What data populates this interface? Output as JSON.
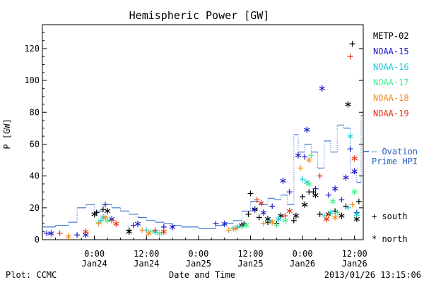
{
  "chart_data": {
    "type": "scatter",
    "title": "Hemispheric Power [GW]",
    "ylabel": "P [GW]",
    "xlabel": "Date and Time",
    "xlim": [
      "2013-01-23 12:00",
      "2013-01-26 14:00"
    ],
    "ylim": [
      0,
      135
    ],
    "y_ticks": [
      0,
      20,
      40,
      60,
      80,
      100,
      120
    ],
    "x_ticks": [
      {
        "t": "2013-01-24 00:00",
        "time": "0:00",
        "day": "Jan24"
      },
      {
        "t": "2013-01-24 12:00",
        "time": "12:00",
        "day": "Jan24"
      },
      {
        "t": "2013-01-25 00:00",
        "time": "0:00",
        "day": "Jan25"
      },
      {
        "t": "2013-01-25 12:00",
        "time": "12:00",
        "day": "Jan25"
      },
      {
        "t": "2013-01-26 00:00",
        "time": "0:00",
        "day": "Jan26"
      },
      {
        "t": "2013-01-26 12:00",
        "time": "12:00",
        "day": "Jan26"
      }
    ],
    "marker_legend": [
      {
        "symbol": "+",
        "label": "south"
      },
      {
        "symbol": "*",
        "label": "north"
      }
    ],
    "ovation": {
      "label_line1": "— Ovation",
      "label_line2": "Prime HPI",
      "color": "#1f5fc8",
      "points": [
        [
          "2013-01-23 12:00",
          8
        ],
        [
          "2013-01-23 15:00",
          9
        ],
        [
          "2013-01-23 18:00",
          11
        ],
        [
          "2013-01-23 20:00",
          20
        ],
        [
          "2013-01-23 22:00",
          22
        ],
        [
          "2013-01-24 00:00",
          18
        ],
        [
          "2013-01-24 02:00",
          22
        ],
        [
          "2013-01-24 04:00",
          20
        ],
        [
          "2013-01-24 06:00",
          18
        ],
        [
          "2013-01-24 08:00",
          16
        ],
        [
          "2013-01-24 10:00",
          14
        ],
        [
          "2013-01-24 12:00",
          12
        ],
        [
          "2013-01-24 14:00",
          11
        ],
        [
          "2013-01-24 16:00",
          10
        ],
        [
          "2013-01-24 18:00",
          9
        ],
        [
          "2013-01-24 20:00",
          8
        ],
        [
          "2013-01-24 22:00",
          8
        ],
        [
          "2013-01-25 00:00",
          7
        ],
        [
          "2013-01-25 02:00",
          7
        ],
        [
          "2013-01-25 04:00",
          9
        ],
        [
          "2013-01-25 06:00",
          10
        ],
        [
          "2013-01-25 08:00",
          12
        ],
        [
          "2013-01-25 10:00",
          18
        ],
        [
          "2013-01-25 12:00",
          24
        ],
        [
          "2013-01-25 14:00",
          22
        ],
        [
          "2013-01-25 16:00",
          26
        ],
        [
          "2013-01-25 17:30",
          25
        ],
        [
          "2013-01-25 19:00",
          28
        ],
        [
          "2013-01-25 20:30",
          22
        ],
        [
          "2013-01-25 22:00",
          66
        ],
        [
          "2013-01-25 23:00",
          55
        ],
        [
          "2013-01-26 00:30",
          60
        ],
        [
          "2013-01-26 02:00",
          55
        ],
        [
          "2013-01-26 03:30",
          45
        ],
        [
          "2013-01-26 05:00",
          62
        ],
        [
          "2013-01-26 06:30",
          55
        ],
        [
          "2013-01-26 08:00",
          72
        ],
        [
          "2013-01-26 09:30",
          70
        ],
        [
          "2013-01-26 11:00",
          42
        ],
        [
          "2013-01-26 12:30",
          36
        ],
        [
          "2013-01-26 13:30",
          78
        ]
      ]
    },
    "series": [
      {
        "name": "METP-02",
        "color": "#000000",
        "south": [
          [
            "2013-01-24 00:30",
            17
          ],
          [
            "2013-01-24 02:00",
            19
          ],
          [
            "2013-01-24 08:00",
            6
          ],
          [
            "2013-01-25 10:30",
            10
          ],
          [
            "2013-01-25 11:30",
            16
          ],
          [
            "2013-01-25 12:00",
            29
          ],
          [
            "2013-01-25 14:00",
            14
          ],
          [
            "2013-01-25 16:00",
            11
          ],
          [
            "2013-01-25 18:00",
            10
          ],
          [
            "2013-01-25 22:00",
            12
          ],
          [
            "2013-01-26 00:00",
            27
          ],
          [
            "2013-01-26 01:30",
            30
          ],
          [
            "2013-01-26 02:30",
            30
          ],
          [
            "2013-01-26 04:00",
            16
          ],
          [
            "2013-01-26 07:30",
            18
          ],
          [
            "2013-01-26 10:00",
            21
          ],
          [
            "2013-01-26 11:30",
            123
          ],
          [
            "2013-01-26 13:00",
            24
          ]
        ],
        "north": [
          [
            "2013-01-24 00:00",
            16
          ],
          [
            "2013-01-24 03:00",
            18
          ],
          [
            "2013-01-24 08:00",
            5
          ],
          [
            "2013-01-25 10:00",
            9
          ],
          [
            "2013-01-25 13:00",
            19
          ],
          [
            "2013-01-25 16:00",
            13
          ],
          [
            "2013-01-25 19:00",
            15
          ],
          [
            "2013-01-25 22:30",
            15
          ],
          [
            "2013-01-26 00:30",
            22
          ],
          [
            "2013-01-26 03:00",
            28
          ],
          [
            "2013-01-26 06:00",
            16
          ],
          [
            "2013-01-26 09:00",
            15
          ],
          [
            "2013-01-26 10:30",
            85
          ],
          [
            "2013-01-26 12:30",
            13
          ]
        ]
      },
      {
        "name": "NOAA-15",
        "color": "#1a1acc",
        "south": [
          [
            "2013-01-23 13:00",
            4
          ],
          [
            "2013-01-23 20:00",
            3
          ],
          [
            "2013-01-24 02:30",
            22
          ],
          [
            "2013-01-24 09:00",
            9
          ],
          [
            "2013-01-24 16:00",
            8
          ],
          [
            "2013-01-25 04:00",
            10
          ],
          [
            "2013-01-25 13:00",
            19
          ],
          [
            "2013-01-25 17:00",
            21
          ],
          [
            "2013-01-25 21:00",
            30
          ],
          [
            "2013-01-26 00:30",
            52
          ],
          [
            "2013-01-26 03:00",
            32
          ],
          [
            "2013-01-26 06:00",
            28
          ],
          [
            "2013-01-26 09:00",
            25
          ],
          [
            "2013-01-26 11:00",
            57
          ],
          [
            "2013-01-26 12:30",
            17
          ]
        ],
        "north": [
          [
            "2013-01-23 14:00",
            4
          ],
          [
            "2013-01-23 22:00",
            3
          ],
          [
            "2013-01-24 04:00",
            13
          ],
          [
            "2013-01-24 10:00",
            10
          ],
          [
            "2013-01-24 18:00",
            8
          ],
          [
            "2013-01-25 06:00",
            10
          ],
          [
            "2013-01-25 15:00",
            17
          ],
          [
            "2013-01-25 19:30",
            37
          ],
          [
            "2013-01-25 23:00",
            53
          ],
          [
            "2013-01-26 01:00",
            69
          ],
          [
            "2013-01-26 04:30",
            95
          ],
          [
            "2013-01-26 07:30",
            32
          ],
          [
            "2013-01-26 10:00",
            39
          ],
          [
            "2013-01-26 12:00",
            43
          ]
        ]
      },
      {
        "name": "NOAA-16",
        "color": "#19c8d6",
        "south": [
          [
            "2013-01-24 01:30",
            12
          ],
          [
            "2013-01-24 12:00",
            6
          ],
          [
            "2013-01-25 08:00",
            7
          ],
          [
            "2013-01-25 16:30",
            12
          ],
          [
            "2013-01-26 00:00",
            38
          ],
          [
            "2013-01-26 05:00",
            15
          ],
          [
            "2013-01-26 10:30",
            20
          ]
        ],
        "north": [
          [
            "2013-01-24 02:00",
            14
          ],
          [
            "2013-01-24 14:00",
            5
          ],
          [
            "2013-01-25 09:00",
            8
          ],
          [
            "2013-01-25 18:30",
            13
          ],
          [
            "2013-01-26 01:00",
            36
          ],
          [
            "2013-01-26 06:30",
            17
          ],
          [
            "2013-01-26 11:00",
            65
          ],
          [
            "2013-01-26 12:30",
            16
          ]
        ]
      },
      {
        "name": "NOAA-17",
        "color": "#3ef08a",
        "south": [
          [
            "2013-01-24 01:00",
            11
          ],
          [
            "2013-01-24 13:00",
            5
          ],
          [
            "2013-01-25 10:00",
            8
          ],
          [
            "2013-01-25 18:00",
            9
          ],
          [
            "2013-01-26 02:00",
            53
          ],
          [
            "2013-01-26 08:00",
            17
          ]
        ],
        "north": [
          [
            "2013-01-24 03:00",
            12
          ],
          [
            "2013-01-24 15:00",
            4
          ],
          [
            "2013-01-25 11:00",
            9
          ],
          [
            "2013-01-25 20:00",
            12
          ],
          [
            "2013-01-26 01:30",
            35
          ],
          [
            "2013-01-26 07:00",
            24
          ],
          [
            "2013-01-26 12:00",
            30
          ]
        ]
      },
      {
        "name": "NOAA-18",
        "color": "#f08a1a",
        "south": [
          [
            "2013-01-24 01:00",
            10
          ],
          [
            "2013-01-24 11:00",
            6
          ],
          [
            "2013-01-25 07:00",
            6
          ],
          [
            "2013-01-25 15:00",
            10
          ],
          [
            "2013-01-25 23:30",
            45
          ],
          [
            "2013-01-26 06:00",
            15
          ],
          [
            "2013-01-26 11:30",
            22
          ]
        ],
        "north": [
          [
            "2013-01-23 18:00",
            2
          ],
          [
            "2013-01-24 02:30",
            14
          ],
          [
            "2013-01-24 12:30",
            4
          ],
          [
            "2013-01-25 08:30",
            7
          ],
          [
            "2013-01-25 17:00",
            11
          ],
          [
            "2013-01-26 01:30",
            50
          ],
          [
            "2013-01-26 07:30",
            14
          ]
        ]
      },
      {
        "name": "NOAA-19",
        "color": "#e83010",
        "south": [
          [
            "2013-01-23 16:00",
            4
          ],
          [
            "2013-01-24 04:00",
            12
          ],
          [
            "2013-01-24 14:00",
            6
          ],
          [
            "2013-01-25 13:30",
            25
          ],
          [
            "2013-01-25 20:00",
            15
          ],
          [
            "2013-01-26 04:00",
            40
          ],
          [
            "2013-01-26 11:00",
            115
          ]
        ],
        "north": [
          [
            "2013-01-23 22:00",
            5
          ],
          [
            "2013-01-24 05:00",
            10
          ],
          [
            "2013-01-24 16:00",
            5
          ],
          [
            "2013-01-25 14:30",
            23
          ],
          [
            "2013-01-25 21:00",
            18
          ],
          [
            "2013-01-26 05:30",
            13
          ],
          [
            "2013-01-26 12:00",
            51
          ]
        ]
      }
    ]
  },
  "footer": {
    "left": "Plot: CCMC",
    "center": "Date and Time",
    "right": "2013/01/26 13:15:06"
  }
}
